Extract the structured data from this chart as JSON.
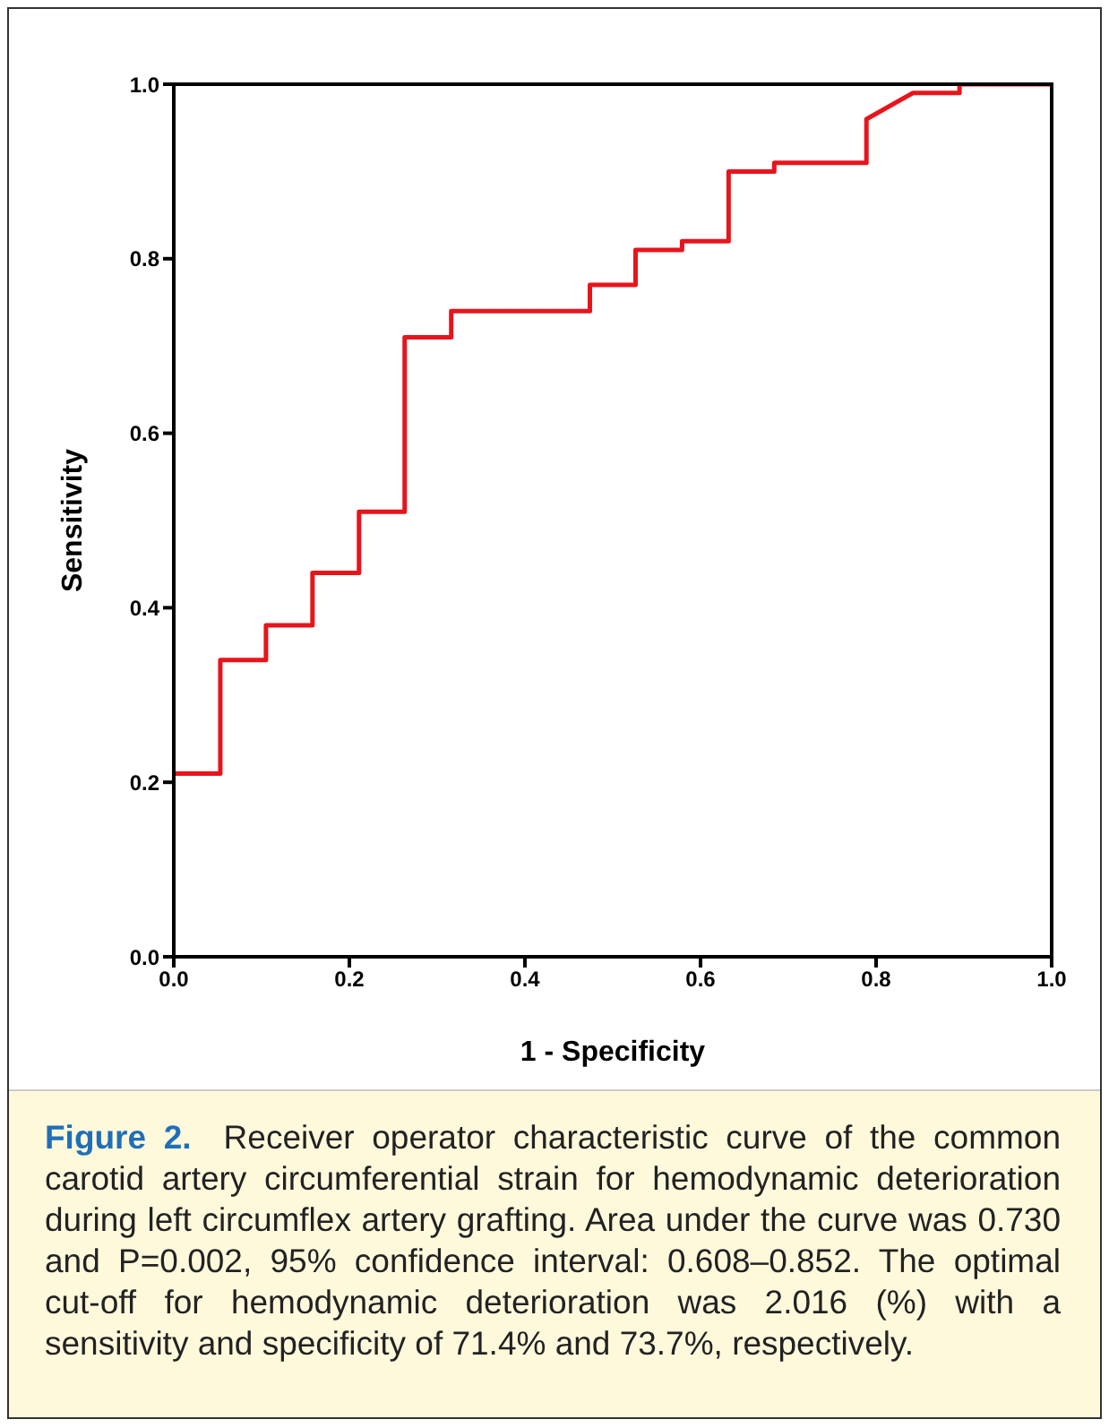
{
  "chart_data": {
    "type": "line",
    "xlabel": "1 - Specificity",
    "ylabel": "Sensitivity",
    "x": [
      0,
      0.053,
      0.053,
      0.105,
      0.105,
      0.158,
      0.158,
      0.211,
      0.211,
      0.263,
      0.263,
      0.316,
      0.316,
      0.474,
      0.474,
      0.526,
      0.526,
      0.579,
      0.579,
      0.632,
      0.632,
      0.684,
      0.684,
      0.789,
      0.789,
      0.842,
      0.895,
      0.895,
      1.0
    ],
    "series": [
      {
        "color": "#e8141c",
        "values": [
          0.21,
          0.21,
          0.34,
          0.34,
          0.38,
          0.38,
          0.44,
          0.44,
          0.51,
          0.51,
          0.71,
          0.71,
          0.74,
          0.74,
          0.77,
          0.77,
          0.81,
          0.81,
          0.82,
          0.82,
          0.9,
          0.9,
          0.91,
          0.91,
          0.96,
          0.99,
          0.99,
          1.0,
          1.0
        ]
      }
    ],
    "xlim": [
      0,
      1
    ],
    "ylim": [
      0,
      1
    ],
    "xticks": [
      {
        "value": 0,
        "label": "0.0"
      },
      {
        "value": 0.2,
        "label": "0.2"
      },
      {
        "value": 0.4,
        "label": "0.4"
      },
      {
        "value": 0.6,
        "label": "0.6"
      },
      {
        "value": 0.8,
        "label": "0.8"
      },
      {
        "value": 1,
        "label": "1.0"
      }
    ],
    "yticks": [
      {
        "value": 0,
        "label": "0.0"
      },
      {
        "value": 0.2,
        "label": "0.2"
      },
      {
        "value": 0.4,
        "label": "0.4"
      },
      {
        "value": 0.6,
        "label": "0.6"
      },
      {
        "value": 0.8,
        "label": "0.8"
      },
      {
        "value": 1,
        "label": "1.0"
      }
    ],
    "grid": false,
    "legend": false,
    "marker": "none",
    "line_style": "solid",
    "annotations": [
      "Figure 2.",
      "Receiver operator characteristic curve of the common carotid artery circumferential strain for hemodynamic deterioration during left circumflex artery grafting. Area under the curve was 0.730 and P=0.002, 95% confidence interval: 0.608–0.852. The optimal cut-off for hemodynamic deterioration was 2.016 (%) with a sensitivity and specificity of 71.4% and 73.7%, respectively."
    ]
  }
}
